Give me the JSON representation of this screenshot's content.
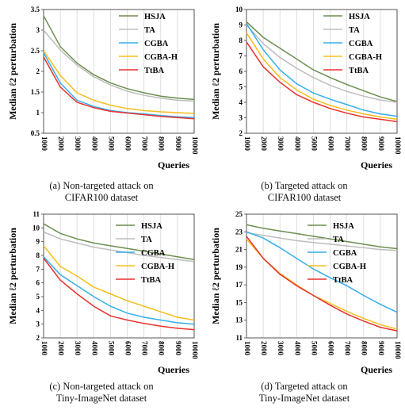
{
  "legend_labels": [
    "HSJA",
    "TA",
    "CGBA",
    "CGBA-H",
    "TtBA"
  ],
  "colors": {
    "HSJA": "#6b8e4e",
    "TA": "#bdbdbd",
    "CGBA": "#35aee8",
    "CGBA-H": "#f5be1e",
    "TtBA": "#e8312f"
  },
  "captions": [
    [
      "(a) Non-targeted attack on",
      "CIFAR100 dataset"
    ],
    [
      "(b) Targeted attack on",
      "CIFAR100 dataset"
    ],
    [
      "(c) Non-targeted attack on",
      "Tiny-ImageNet dataset"
    ],
    [
      "(d) Targeted attack on",
      "Tiny-ImageNet dataset"
    ]
  ],
  "chart_data": [
    {
      "type": "line",
      "xlabel": "Queries",
      "ylabel": "Median ℓ2 perturbation",
      "x": [
        1000,
        2000,
        3000,
        4000,
        5000,
        6000,
        7000,
        8000,
        9000,
        10000
      ],
      "ylim": [
        0.5,
        3.5
      ],
      "yticks": [
        "0.5",
        "1",
        "1.5",
        "2",
        "2.5",
        "3",
        "3.5"
      ],
      "ytick_values": [
        0.5,
        1,
        1.5,
        2,
        2.5,
        3,
        3.5
      ],
      "series": [
        {
          "name": "HSJA",
          "values": [
            3.35,
            2.6,
            2.2,
            1.92,
            1.72,
            1.58,
            1.48,
            1.4,
            1.35,
            1.32
          ]
        },
        {
          "name": "TA",
          "values": [
            3.0,
            2.52,
            2.15,
            1.87,
            1.67,
            1.52,
            1.42,
            1.35,
            1.3,
            1.28
          ]
        },
        {
          "name": "CGBA",
          "values": [
            2.45,
            1.72,
            1.3,
            1.15,
            1.05,
            1.0,
            0.97,
            0.93,
            0.9,
            0.88
          ]
        },
        {
          "name": "CGBA-H",
          "values": [
            2.5,
            1.9,
            1.48,
            1.3,
            1.18,
            1.1,
            1.05,
            1.02,
            1.0,
            0.98
          ]
        },
        {
          "name": "TtBA",
          "values": [
            2.35,
            1.62,
            1.25,
            1.12,
            1.03,
            0.99,
            0.95,
            0.91,
            0.88,
            0.85
          ]
        }
      ]
    },
    {
      "type": "line",
      "xlabel": "Queries",
      "ylabel": "Median ℓ2 perturbation",
      "x": [
        1000,
        2000,
        3000,
        4000,
        5000,
        6000,
        7000,
        8000,
        9000,
        10000
      ],
      "ylim": [
        2,
        10
      ],
      "yticks": [
        "2",
        "3",
        "4",
        "5",
        "6",
        "7",
        "8",
        "9",
        "10"
      ],
      "ytick_values": [
        2,
        3,
        4,
        5,
        6,
        7,
        8,
        9,
        10
      ],
      "series": [
        {
          "name": "HSJA",
          "values": [
            9.2,
            8.2,
            7.5,
            6.8,
            6.1,
            5.6,
            5.15,
            4.75,
            4.35,
            4.05
          ]
        },
        {
          "name": "TA",
          "values": [
            9.0,
            7.8,
            6.9,
            6.2,
            5.6,
            5.1,
            4.7,
            4.4,
            4.15,
            4.0
          ]
        },
        {
          "name": "CGBA",
          "values": [
            9.1,
            7.4,
            6.1,
            5.2,
            4.6,
            4.2,
            3.85,
            3.5,
            3.25,
            3.1
          ]
        },
        {
          "name": "CGBA-H",
          "values": [
            8.5,
            6.8,
            5.6,
            4.8,
            4.2,
            3.8,
            3.5,
            3.25,
            3.05,
            2.9
          ]
        },
        {
          "name": "TtBA",
          "values": [
            7.9,
            6.3,
            5.3,
            4.5,
            4.0,
            3.6,
            3.3,
            3.05,
            2.9,
            2.75
          ]
        }
      ]
    },
    {
      "type": "line",
      "xlabel": "Queries",
      "ylabel": "Median ℓ2 perturbation",
      "x": [
        1000,
        2000,
        3000,
        4000,
        5000,
        6000,
        7000,
        8000,
        9000,
        10000
      ],
      "ylim": [
        2,
        11
      ],
      "yticks": [
        "2",
        "3",
        "4",
        "5",
        "6",
        "7",
        "8",
        "9",
        "10",
        "11"
      ],
      "ytick_values": [
        2,
        3,
        4,
        5,
        6,
        7,
        8,
        9,
        10,
        11
      ],
      "series": [
        {
          "name": "HSJA",
          "values": [
            10.3,
            9.6,
            9.2,
            8.9,
            8.7,
            8.5,
            8.3,
            8.1,
            7.9,
            7.7
          ]
        },
        {
          "name": "TA",
          "values": [
            9.7,
            9.2,
            8.9,
            8.6,
            8.4,
            8.2,
            8.0,
            7.85,
            7.7,
            7.55
          ]
        },
        {
          "name": "CGBA",
          "values": [
            7.9,
            6.6,
            5.8,
            5.0,
            4.3,
            3.8,
            3.5,
            3.3,
            3.1,
            3.0
          ]
        },
        {
          "name": "CGBA-H",
          "values": [
            8.7,
            7.2,
            6.5,
            5.7,
            5.2,
            4.7,
            4.3,
            3.9,
            3.5,
            3.3
          ]
        },
        {
          "name": "TtBA",
          "values": [
            7.8,
            6.2,
            5.2,
            4.3,
            3.6,
            3.3,
            3.05,
            2.85,
            2.7,
            2.6
          ]
        }
      ]
    },
    {
      "type": "line",
      "xlabel": "Queries",
      "ylabel": "Median ℓ2 perturbation",
      "x": [
        1000,
        2000,
        3000,
        4000,
        5000,
        6000,
        7000,
        8000,
        9000,
        10000
      ],
      "ylim": [
        11,
        25
      ],
      "yticks": [
        "11",
        "13",
        "15",
        "17",
        "19",
        "21",
        "23",
        "25"
      ],
      "ytick_values": [
        11,
        13,
        15,
        17,
        19,
        21,
        23,
        25
      ],
      "series": [
        {
          "name": "HSJA",
          "values": [
            23.8,
            23.4,
            23.1,
            22.8,
            22.5,
            22.2,
            21.9,
            21.6,
            21.3,
            21.1
          ]
        },
        {
          "name": "TA",
          "values": [
            22.9,
            22.6,
            22.3,
            22.0,
            21.8,
            21.6,
            21.4,
            21.2,
            21.0,
            20.9
          ]
        },
        {
          "name": "CGBA",
          "values": [
            23.0,
            22.3,
            21.2,
            20.0,
            18.8,
            17.8,
            16.9,
            15.8,
            14.8,
            13.9
          ]
        },
        {
          "name": "CGBA-H",
          "values": [
            22.2,
            20.0,
            18.3,
            17.0,
            15.8,
            14.9,
            14.0,
            13.2,
            12.5,
            12.0
          ]
        },
        {
          "name": "TtBA",
          "values": [
            22.5,
            20.0,
            18.2,
            16.9,
            15.8,
            14.7,
            13.7,
            12.9,
            12.2,
            11.8
          ]
        }
      ]
    }
  ]
}
